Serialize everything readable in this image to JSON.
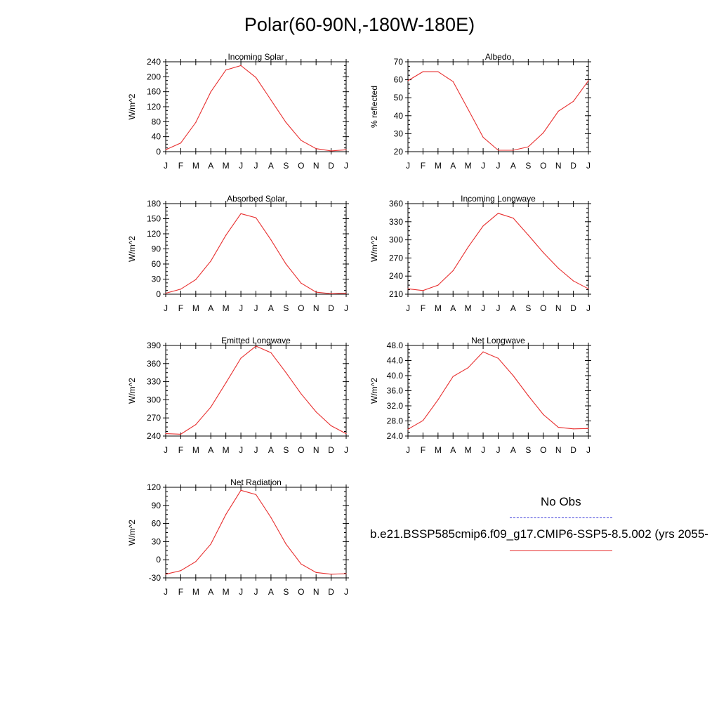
{
  "page": {
    "title": "Polar(60-90N,-180W-180E)"
  },
  "legend": {
    "obs_label": "No Obs",
    "case_label": "b.e21.BSSP585cmip6.f09_g17.CMIP6-SSP5-8.5.002 (yrs 2055-",
    "obs_color": "#3a3ad8",
    "case_color": "#e83030"
  },
  "chart_data": [
    {
      "type": "line",
      "title": "Incoming Solar",
      "ylabel": "W/m^2",
      "xlabel": "",
      "categories": [
        "J",
        "F",
        "M",
        "A",
        "M",
        "J",
        "J",
        "A",
        "S",
        "O",
        "N",
        "D",
        "J"
      ],
      "ylim": [
        0,
        240
      ],
      "yticks": [
        "0",
        "40",
        "80",
        "120",
        "160",
        "200",
        "240"
      ],
      "series": [
        {
          "name": "b.e21.BSSP585cmip6.f09_g17.CMIP6-SSP5-8.5.002",
          "values": [
            5,
            23,
            78,
            160,
            218,
            230,
            198,
            138,
            78,
            30,
            8,
            2,
            5
          ]
        }
      ]
    },
    {
      "type": "line",
      "title": "Albedo",
      "ylabel": "% reflected",
      "xlabel": "",
      "categories": [
        "J",
        "F",
        "M",
        "A",
        "M",
        "J",
        "J",
        "A",
        "S",
        "O",
        "N",
        "D",
        "J"
      ],
      "ylim": [
        20,
        70
      ],
      "yticks": [
        "20",
        "30",
        "40",
        "50",
        "60",
        "70"
      ],
      "series": [
        {
          "name": "b.e21.BSSP585cmip6.f09_g17.CMIP6-SSP5-8.5.002",
          "values": [
            59.5,
            64.5,
            64.5,
            59,
            43.5,
            28,
            20.8,
            20.8,
            22.7,
            30.5,
            42.5,
            48,
            59.5
          ]
        }
      ]
    },
    {
      "type": "line",
      "title": "Absorbed Solar",
      "ylabel": "W/m^2",
      "xlabel": "",
      "categories": [
        "J",
        "F",
        "M",
        "A",
        "M",
        "J",
        "J",
        "A",
        "S",
        "O",
        "N",
        "D",
        "J"
      ],
      "ylim": [
        0,
        180
      ],
      "yticks": [
        "0",
        "30",
        "60",
        "90",
        "120",
        "150",
        "180"
      ],
      "series": [
        {
          "name": "b.e21.BSSP585cmip6.f09_g17.CMIP6-SSP5-8.5.002",
          "values": [
            2,
            10,
            29,
            66,
            117,
            160,
            152,
            108,
            60,
            22,
            4,
            1,
            2
          ]
        }
      ]
    },
    {
      "type": "line",
      "title": "Incoming Longwave",
      "ylabel": "W/m^2",
      "xlabel": "",
      "categories": [
        "J",
        "F",
        "M",
        "A",
        "M",
        "J",
        "J",
        "A",
        "S",
        "O",
        "N",
        "D",
        "J"
      ],
      "ylim": [
        210,
        360
      ],
      "yticks": [
        "210",
        "240",
        "270",
        "300",
        "330",
        "360"
      ],
      "series": [
        {
          "name": "b.e21.BSSP585cmip6.f09_g17.CMIP6-SSP5-8.5.002",
          "values": [
            219,
            216,
            225,
            249,
            288,
            323,
            344,
            336,
            308,
            279,
            253,
            232,
            219
          ]
        }
      ]
    },
    {
      "type": "line",
      "title": "Emitted Longwave",
      "ylabel": "W/m^2",
      "xlabel": "",
      "categories": [
        "J",
        "F",
        "M",
        "A",
        "M",
        "J",
        "J",
        "A",
        "S",
        "O",
        "N",
        "D",
        "J"
      ],
      "ylim": [
        240,
        390
      ],
      "yticks": [
        "240",
        "270",
        "300",
        "330",
        "360",
        "390"
      ],
      "series": [
        {
          "name": "b.e21.BSSP585cmip6.f09_g17.CMIP6-SSP5-8.5.002",
          "values": [
            244,
            243,
            259,
            288,
            328,
            369,
            389,
            378,
            345,
            310,
            280,
            257,
            244
          ]
        }
      ]
    },
    {
      "type": "line",
      "title": "Net Longwave",
      "ylabel": "W/m^2",
      "xlabel": "",
      "categories": [
        "J",
        "F",
        "M",
        "A",
        "M",
        "J",
        "J",
        "A",
        "S",
        "O",
        "N",
        "D",
        "J"
      ],
      "ylim": [
        24,
        48
      ],
      "yticks": [
        "24.0",
        "28.0",
        "32.0",
        "36.0",
        "40.0",
        "44.0",
        "48.0"
      ],
      "series": [
        {
          "name": "b.e21.BSSP585cmip6.f09_g17.CMIP6-SSP5-8.5.002",
          "values": [
            25.8,
            28.1,
            33.6,
            39.8,
            42.1,
            46.3,
            44.6,
            40,
            34.7,
            29.7,
            26.3,
            25.9,
            26
          ]
        }
      ]
    },
    {
      "type": "line",
      "title": "Net Radiation",
      "ylabel": "W/m^2",
      "xlabel": "",
      "categories": [
        "J",
        "F",
        "M",
        "A",
        "M",
        "J",
        "J",
        "A",
        "S",
        "O",
        "N",
        "D",
        "J"
      ],
      "ylim": [
        -30,
        120
      ],
      "yticks": [
        "-30",
        "0",
        "30",
        "60",
        "90",
        "120"
      ],
      "series": [
        {
          "name": "b.e21.BSSP585cmip6.f09_g17.CMIP6-SSP5-8.5.002",
          "values": [
            -24,
            -18,
            -3,
            26,
            75,
            115,
            108,
            70,
            26,
            -7,
            -21,
            -24,
            -23
          ]
        }
      ]
    }
  ]
}
